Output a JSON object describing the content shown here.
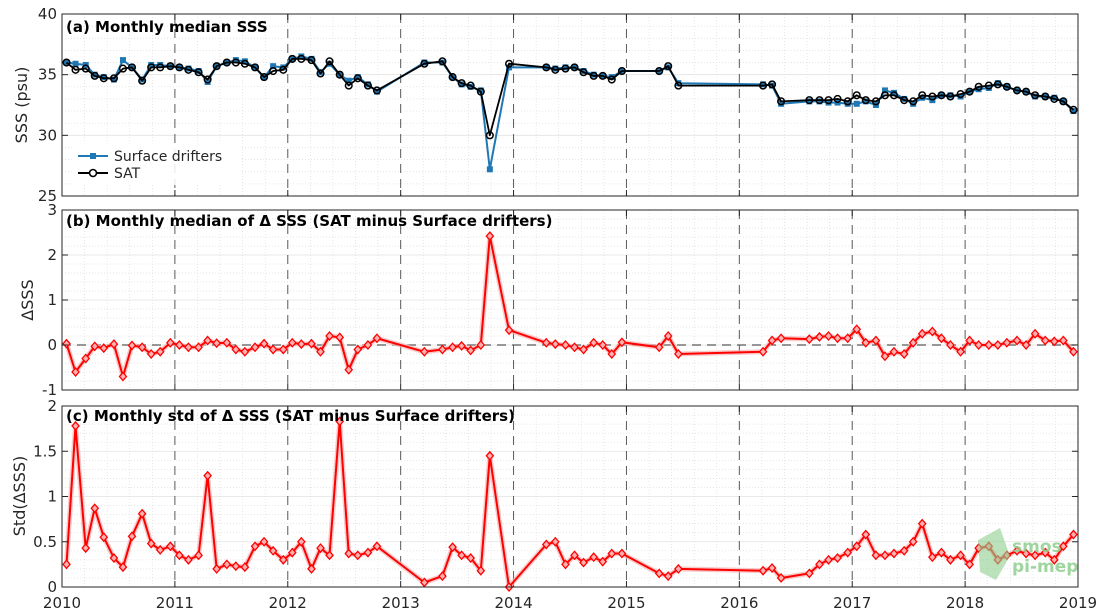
{
  "watermark": {
    "line1": "smos",
    "line2": "pi-mep"
  },
  "x_axis": {
    "range": [
      2010,
      2019
    ],
    "ticks": [
      2010,
      2011,
      2012,
      2013,
      2014,
      2015,
      2016,
      2017,
      2018,
      2019
    ],
    "tick_labels": [
      "2010",
      "2011",
      "2012",
      "2013",
      "2014",
      "2015",
      "2016",
      "2017",
      "2018",
      "2019"
    ]
  },
  "colors": {
    "drifters": "#1f77b4",
    "sat": "#000000",
    "delta": "#ff0000",
    "delta_band": "#f4b4b4",
    "watermark": "#8fcf8f"
  },
  "chart_data": [
    {
      "type": "line",
      "title": "(a) Monthly median SSS",
      "xlabel": "",
      "ylabel": "SSS (psu)",
      "ylim": [
        25,
        40
      ],
      "yticks": [
        25,
        30,
        35,
        40
      ],
      "ytick_labels": [
        "25",
        "30",
        "35",
        "40"
      ],
      "grid": true,
      "legend": "lower-left",
      "series": [
        {
          "name": "Surface drifters",
          "x": [
            2010.04,
            2010.12,
            2010.21,
            2010.29,
            2010.37,
            2010.46,
            2010.54,
            2010.62,
            2010.71,
            2010.79,
            2010.87,
            2010.96,
            2011.04,
            2011.12,
            2011.21,
            2011.29,
            2011.37,
            2011.46,
            2011.54,
            2011.62,
            2011.71,
            2011.79,
            2011.87,
            2011.96,
            2012.04,
            2012.12,
            2012.21,
            2012.29,
            2012.37,
            2012.46,
            2012.54,
            2012.62,
            2012.71,
            2012.79,
            2013.21,
            2013.37,
            2013.46,
            2013.54,
            2013.62,
            2013.71,
            2013.79,
            2013.96,
            2014.29,
            2014.37,
            2014.46,
            2014.54,
            2014.62,
            2014.71,
            2014.79,
            2014.87,
            2014.96,
            2015.29,
            2015.37,
            2015.46,
            2016.21,
            2016.29,
            2016.37,
            2016.62,
            2016.71,
            2016.79,
            2016.87,
            2016.96,
            2017.04,
            2017.12,
            2017.21,
            2017.29,
            2017.37,
            2017.46,
            2017.54,
            2017.62,
            2017.71,
            2017.79,
            2017.87,
            2017.96,
            2018.04,
            2018.12,
            2018.21,
            2018.29,
            2018.37,
            2018.46,
            2018.54,
            2018.62,
            2018.71,
            2018.79,
            2018.87,
            2018.96
          ],
          "values": [
            36.0,
            35.9,
            35.8,
            35.0,
            34.8,
            34.6,
            36.2,
            35.6,
            34.6,
            35.8,
            35.8,
            35.7,
            35.6,
            35.5,
            35.3,
            34.4,
            35.7,
            36.0,
            36.2,
            36.1,
            35.6,
            34.8,
            35.7,
            35.6,
            36.3,
            36.5,
            36.3,
            35.2,
            35.9,
            35.0,
            34.5,
            34.8,
            34.2,
            33.6,
            36.0,
            36.0,
            34.8,
            34.2,
            34.0,
            33.7,
            27.2,
            35.6,
            35.6,
            35.5,
            35.6,
            35.6,
            35.3,
            35.0,
            34.9,
            34.8,
            35.3,
            35.3,
            35.6,
            34.3,
            34.2,
            34.1,
            32.6,
            32.8,
            32.8,
            32.7,
            32.7,
            32.6,
            32.6,
            32.8,
            32.5,
            33.7,
            33.5,
            33.0,
            32.6,
            33.1,
            32.9,
            33.3,
            33.3,
            33.2,
            33.6,
            33.8,
            33.9,
            34.3,
            34.0,
            33.7,
            33.6,
            33.2,
            33.2,
            33.1,
            32.8,
            32.0
          ]
        },
        {
          "name": "SAT",
          "x": [
            2010.04,
            2010.12,
            2010.21,
            2010.29,
            2010.37,
            2010.46,
            2010.54,
            2010.62,
            2010.71,
            2010.79,
            2010.87,
            2010.96,
            2011.04,
            2011.12,
            2011.21,
            2011.29,
            2011.37,
            2011.46,
            2011.54,
            2011.62,
            2011.71,
            2011.79,
            2011.87,
            2011.96,
            2012.04,
            2012.12,
            2012.21,
            2012.29,
            2012.37,
            2012.46,
            2012.54,
            2012.62,
            2012.71,
            2012.79,
            2013.21,
            2013.37,
            2013.46,
            2013.54,
            2013.62,
            2013.71,
            2013.79,
            2013.96,
            2014.29,
            2014.37,
            2014.46,
            2014.54,
            2014.62,
            2014.71,
            2014.79,
            2014.87,
            2014.96,
            2015.29,
            2015.37,
            2015.46,
            2016.21,
            2016.29,
            2016.37,
            2016.62,
            2016.71,
            2016.79,
            2016.87,
            2016.96,
            2017.04,
            2017.12,
            2017.21,
            2017.29,
            2017.37,
            2017.46,
            2017.54,
            2017.62,
            2017.71,
            2017.79,
            2017.87,
            2017.96,
            2018.04,
            2018.12,
            2018.21,
            2018.29,
            2018.37,
            2018.46,
            2018.54,
            2018.62,
            2018.71,
            2018.79,
            2018.87,
            2018.96
          ],
          "values": [
            36.0,
            35.4,
            35.5,
            34.9,
            34.7,
            34.7,
            35.5,
            35.6,
            34.5,
            35.6,
            35.6,
            35.7,
            35.6,
            35.4,
            35.2,
            34.6,
            35.7,
            36.0,
            36.0,
            35.9,
            35.6,
            34.8,
            35.3,
            35.4,
            36.3,
            36.3,
            36.2,
            35.1,
            36.1,
            35.0,
            34.1,
            34.7,
            34.1,
            33.7,
            35.9,
            36.1,
            34.8,
            34.3,
            34.1,
            33.6,
            30.0,
            35.9,
            35.6,
            35.4,
            35.5,
            35.6,
            35.2,
            34.9,
            34.9,
            34.6,
            35.3,
            35.3,
            35.7,
            34.1,
            34.1,
            34.2,
            32.8,
            32.9,
            32.9,
            32.9,
            33.0,
            32.8,
            33.3,
            32.9,
            32.8,
            33.3,
            33.3,
            32.9,
            32.8,
            33.3,
            33.2,
            33.3,
            33.2,
            33.4,
            33.6,
            34.0,
            34.1,
            34.2,
            34.0,
            33.7,
            33.6,
            33.3,
            33.2,
            33.0,
            32.8,
            32.1
          ]
        }
      ]
    },
    {
      "type": "line",
      "title": "(b) Monthly median of Δ SSS (SAT minus Surface drifters)",
      "xlabel": "",
      "ylabel": "ΔSSS",
      "ylim": [
        -1,
        3
      ],
      "yticks": [
        -1,
        0,
        1,
        2,
        3
      ],
      "ytick_labels": [
        "-1",
        "0",
        "1",
        "2",
        "3"
      ],
      "grid": true,
      "zero_line": true,
      "series": [
        {
          "x": [
            2010.04,
            2010.12,
            2010.21,
            2010.29,
            2010.37,
            2010.46,
            2010.54,
            2010.62,
            2010.71,
            2010.79,
            2010.87,
            2010.96,
            2011.04,
            2011.12,
            2011.21,
            2011.29,
            2011.37,
            2011.46,
            2011.54,
            2011.62,
            2011.71,
            2011.79,
            2011.87,
            2011.96,
            2012.04,
            2012.12,
            2012.21,
            2012.29,
            2012.37,
            2012.46,
            2012.54,
            2012.62,
            2012.71,
            2012.79,
            2013.21,
            2013.37,
            2013.46,
            2013.54,
            2013.62,
            2013.71,
            2013.79,
            2013.96,
            2014.29,
            2014.37,
            2014.46,
            2014.54,
            2014.62,
            2014.71,
            2014.79,
            2014.87,
            2014.96,
            2015.29,
            2015.37,
            2015.46,
            2016.21,
            2016.29,
            2016.37,
            2016.62,
            2016.71,
            2016.79,
            2016.87,
            2016.96,
            2017.04,
            2017.12,
            2017.21,
            2017.29,
            2017.37,
            2017.46,
            2017.54,
            2017.62,
            2017.71,
            2017.79,
            2017.87,
            2017.96,
            2018.04,
            2018.12,
            2018.21,
            2018.29,
            2018.37,
            2018.46,
            2018.54,
            2018.62,
            2018.71,
            2018.79,
            2018.87,
            2018.96
          ],
          "values": [
            0.03,
            -0.6,
            -0.3,
            -0.03,
            -0.07,
            0.02,
            -0.7,
            -0.01,
            -0.05,
            -0.2,
            -0.15,
            0.05,
            0.0,
            -0.05,
            -0.05,
            0.1,
            0.04,
            0.05,
            -0.1,
            -0.15,
            -0.05,
            0.03,
            -0.1,
            -0.1,
            0.05,
            0.02,
            0.03,
            -0.15,
            0.2,
            0.17,
            -0.55,
            -0.1,
            0.0,
            0.15,
            -0.15,
            -0.1,
            -0.05,
            -0.02,
            -0.12,
            0.0,
            2.42,
            0.33,
            0.05,
            0.02,
            0.0,
            -0.05,
            -0.1,
            0.05,
            0.0,
            -0.2,
            0.06,
            -0.05,
            0.2,
            -0.2,
            -0.15,
            0.1,
            0.15,
            0.13,
            0.18,
            0.2,
            0.15,
            0.15,
            0.35,
            0.05,
            0.1,
            -0.25,
            -0.15,
            -0.2,
            0.05,
            0.25,
            0.3,
            0.15,
            0.0,
            -0.15,
            0.1,
            0.0,
            0.0,
            0.0,
            0.05,
            0.1,
            0.0,
            0.25,
            0.1,
            0.08,
            0.1,
            -0.15
          ]
        }
      ]
    },
    {
      "type": "line",
      "title": "(c) Monthly std of Δ SSS (SAT minus Surface drifters)",
      "xlabel": "",
      "ylabel": "Std(ΔSSS)",
      "ylim": [
        0,
        2
      ],
      "yticks": [
        0,
        0.5,
        1,
        1.5,
        2
      ],
      "ytick_labels": [
        "0",
        "0.5",
        "1",
        "1.5",
        "2"
      ],
      "grid": true,
      "series": [
        {
          "x": [
            2010.04,
            2010.12,
            2010.21,
            2010.29,
            2010.37,
            2010.46,
            2010.54,
            2010.62,
            2010.71,
            2010.79,
            2010.87,
            2010.96,
            2011.04,
            2011.12,
            2011.21,
            2011.29,
            2011.37,
            2011.46,
            2011.54,
            2011.62,
            2011.71,
            2011.79,
            2011.87,
            2011.96,
            2012.04,
            2012.12,
            2012.21,
            2012.29,
            2012.37,
            2012.46,
            2012.54,
            2012.62,
            2012.71,
            2012.79,
            2013.21,
            2013.37,
            2013.46,
            2013.54,
            2013.62,
            2013.71,
            2013.79,
            2013.96,
            2014.29,
            2014.37,
            2014.46,
            2014.54,
            2014.62,
            2014.71,
            2014.79,
            2014.87,
            2014.96,
            2015.29,
            2015.37,
            2015.46,
            2016.21,
            2016.29,
            2016.37,
            2016.62,
            2016.71,
            2016.79,
            2016.87,
            2016.96,
            2017.04,
            2017.12,
            2017.21,
            2017.29,
            2017.37,
            2017.46,
            2017.54,
            2017.62,
            2017.71,
            2017.79,
            2017.87,
            2017.96,
            2018.04,
            2018.12,
            2018.21,
            2018.29,
            2018.37,
            2018.46,
            2018.54,
            2018.62,
            2018.71,
            2018.79,
            2018.87,
            2018.96
          ],
          "values": [
            0.25,
            1.78,
            0.43,
            0.87,
            0.55,
            0.32,
            0.22,
            0.56,
            0.81,
            0.48,
            0.41,
            0.45,
            0.35,
            0.3,
            0.35,
            1.23,
            0.2,
            0.25,
            0.23,
            0.22,
            0.45,
            0.5,
            0.4,
            0.3,
            0.38,
            0.5,
            0.2,
            0.43,
            0.35,
            1.83,
            0.37,
            0.35,
            0.38,
            0.45,
            0.05,
            0.12,
            0.44,
            0.35,
            0.32,
            0.18,
            1.45,
            0.0,
            0.47,
            0.5,
            0.25,
            0.35,
            0.27,
            0.33,
            0.28,
            0.37,
            0.37,
            0.15,
            0.12,
            0.2,
            0.18,
            0.21,
            0.1,
            0.15,
            0.25,
            0.3,
            0.32,
            0.38,
            0.45,
            0.58,
            0.35,
            0.35,
            0.37,
            0.4,
            0.5,
            0.7,
            0.33,
            0.38,
            0.3,
            0.35,
            0.25,
            0.43,
            0.45,
            0.3,
            0.35,
            0.4,
            0.37,
            0.35,
            0.38,
            0.3,
            0.45,
            0.58
          ]
        }
      ]
    }
  ]
}
